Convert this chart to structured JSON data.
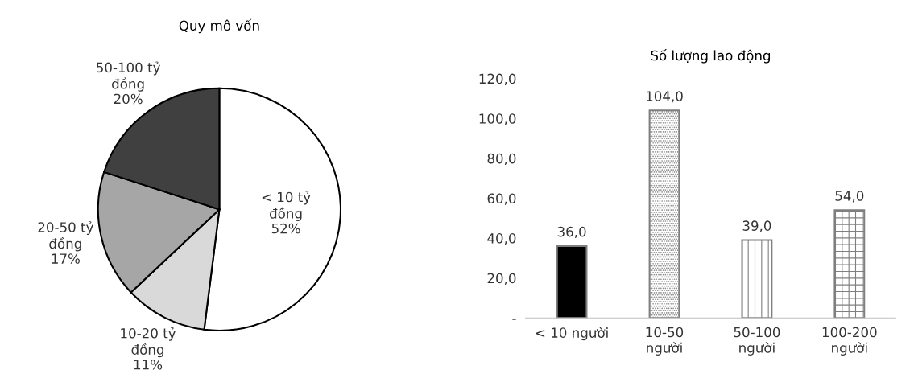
{
  "chart_data": [
    {
      "type": "pie",
      "title": "Quy mô vốn",
      "categories": [
        "< 10 tỷ\nđồng",
        "10-20 tỷ\nđồng",
        "20-50 tỷ\nđồng",
        "50-100 tỷ\nđồng"
      ],
      "values": [
        52,
        11,
        17,
        20
      ],
      "value_labels": [
        "52%",
        "11%",
        "17%",
        "20%"
      ],
      "colors": [
        "#ffffff",
        "#d9d9d9",
        "#a6a6a6",
        "#404040"
      ],
      "legend": false
    },
    {
      "type": "bar",
      "title": "Số lượng lao động",
      "categories": [
        "< 10 người",
        "10-50\nngười",
        "50-100\nngười",
        "100-200\nngười"
      ],
      "values": [
        36,
        104,
        39,
        54
      ],
      "value_labels": [
        "36,0",
        "104,0",
        "39,0",
        "54,0"
      ],
      "colors": [
        "#000000",
        "#7f7f7f",
        "#7f7f7f",
        "#7f7f7f"
      ],
      "ylim": [
        0,
        120
      ],
      "yticks": [
        {
          "value": 0,
          "label": "-"
        },
        {
          "value": 20,
          "label": "20,0"
        },
        {
          "value": 40,
          "label": "40,0"
        },
        {
          "value": 60,
          "label": "60,0"
        },
        {
          "value": 80,
          "label": "80,0"
        },
        {
          "value": 100,
          "label": "100,0"
        },
        {
          "value": 120,
          "label": "120,0"
        }
      ],
      "grid": false,
      "legend": false
    }
  ]
}
